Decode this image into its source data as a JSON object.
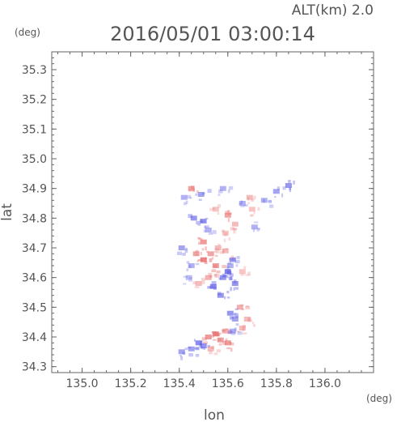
{
  "header": {
    "alt_label": "ALT(km) 2.0",
    "datetime": "2016/05/01 03:00:14"
  },
  "chart_data": {
    "type": "heatmap",
    "title": "2016/05/01 03:00:14",
    "xlabel": "lon",
    "ylabel": "lat",
    "x_unit": "(deg)",
    "y_unit": "(deg)",
    "xlim": [
      134.875,
      136.2
    ],
    "ylim": [
      34.28,
      35.36
    ],
    "xticks": [
      135.0,
      135.2,
      135.4,
      135.6,
      135.8,
      136.0
    ],
    "xtick_labels": [
      "135.0",
      "135.2",
      "135.4",
      "135.6",
      "135.8",
      "136.0"
    ],
    "yticks": [
      34.3,
      34.4,
      34.5,
      34.6,
      34.7,
      34.8,
      34.9,
      35.0,
      35.1,
      35.2,
      35.3
    ],
    "ytick_labels": [
      "34.3",
      "34.4",
      "34.5",
      "34.6",
      "34.7",
      "34.8",
      "34.9",
      "35.0",
      "35.1",
      "35.2",
      "35.3"
    ],
    "grid": false,
    "colors": {
      "positive": "#e8706f",
      "negative": "#5a5ae6"
    },
    "cells": [
      {
        "lon": 135.5,
        "lat": 34.66,
        "v": 0.8
      },
      {
        "lon": 135.55,
        "lat": 34.64,
        "v": 0.6
      },
      {
        "lon": 135.47,
        "lat": 34.68,
        "v": 0.5
      },
      {
        "lon": 135.6,
        "lat": 34.62,
        "v": -0.7
      },
      {
        "lon": 135.58,
        "lat": 34.6,
        "v": -0.5
      },
      {
        "lon": 135.52,
        "lat": 34.6,
        "v": 0.4
      },
      {
        "lon": 135.62,
        "lat": 34.66,
        "v": -0.4
      },
      {
        "lon": 135.45,
        "lat": 34.64,
        "v": -0.3
      },
      {
        "lon": 135.56,
        "lat": 34.7,
        "v": 0.3
      },
      {
        "lon": 135.5,
        "lat": 34.72,
        "v": 0.6
      },
      {
        "lon": 135.54,
        "lat": 34.57,
        "v": -0.6
      },
      {
        "lon": 135.48,
        "lat": 34.58,
        "v": 0.3
      },
      {
        "lon": 135.63,
        "lat": 34.58,
        "v": -0.5
      },
      {
        "lon": 135.41,
        "lat": 34.7,
        "v": -0.4
      },
      {
        "lon": 135.59,
        "lat": 34.69,
        "v": 0.3
      },
      {
        "lon": 135.66,
        "lat": 34.62,
        "v": 0.2
      },
      {
        "lon": 135.44,
        "lat": 34.6,
        "v": -0.2
      },
      {
        "lon": 135.57,
        "lat": 34.54,
        "v": -0.5
      },
      {
        "lon": 135.61,
        "lat": 34.64,
        "v": -0.3
      },
      {
        "lon": 135.53,
        "lat": 34.68,
        "v": 0.5
      },
      {
        "lon": 135.61,
        "lat": 34.48,
        "v": -0.5
      },
      {
        "lon": 135.65,
        "lat": 34.5,
        "v": 0.4
      },
      {
        "lon": 135.68,
        "lat": 34.46,
        "v": 0.3
      },
      {
        "lon": 135.63,
        "lat": 34.46,
        "v": -0.4
      },
      {
        "lon": 135.59,
        "lat": 34.42,
        "v": 0.4
      },
      {
        "lon": 135.55,
        "lat": 34.41,
        "v": 0.8
      },
      {
        "lon": 135.52,
        "lat": 34.4,
        "v": 0.6
      },
      {
        "lon": 135.48,
        "lat": 34.38,
        "v": -0.6
      },
      {
        "lon": 135.5,
        "lat": 34.37,
        "v": -0.5
      },
      {
        "lon": 135.57,
        "lat": 34.39,
        "v": 0.5
      },
      {
        "lon": 135.45,
        "lat": 34.36,
        "v": -0.4
      },
      {
        "lon": 135.62,
        "lat": 34.42,
        "v": -0.3
      },
      {
        "lon": 135.66,
        "lat": 34.43,
        "v": 0.3
      },
      {
        "lon": 135.41,
        "lat": 34.35,
        "v": -0.4
      },
      {
        "lon": 135.6,
        "lat": 34.38,
        "v": 0.6
      },
      {
        "lon": 135.53,
        "lat": 34.36,
        "v": 0.3
      },
      {
        "lon": 135.46,
        "lat": 34.8,
        "v": -0.5
      },
      {
        "lon": 135.5,
        "lat": 34.79,
        "v": -0.4
      },
      {
        "lon": 135.55,
        "lat": 34.83,
        "v": 0.2
      },
      {
        "lon": 135.6,
        "lat": 34.81,
        "v": 0.5
      },
      {
        "lon": 135.63,
        "lat": 34.78,
        "v": 0.3
      },
      {
        "lon": 135.66,
        "lat": 34.85,
        "v": -0.3
      },
      {
        "lon": 135.49,
        "lat": 34.88,
        "v": -0.4
      },
      {
        "lon": 135.45,
        "lat": 34.9,
        "v": 0.5
      },
      {
        "lon": 135.42,
        "lat": 34.87,
        "v": -0.3
      },
      {
        "lon": 135.58,
        "lat": 34.9,
        "v": -0.3
      },
      {
        "lon": 135.69,
        "lat": 34.87,
        "v": 0.3
      },
      {
        "lon": 135.75,
        "lat": 34.86,
        "v": -0.3
      },
      {
        "lon": 135.8,
        "lat": 34.89,
        "v": -0.4
      },
      {
        "lon": 135.85,
        "lat": 34.91,
        "v": -0.5
      },
      {
        "lon": 135.71,
        "lat": 34.77,
        "v": -0.3
      },
      {
        "lon": 135.59,
        "lat": 34.75,
        "v": 0.2
      },
      {
        "lon": 135.52,
        "lat": 34.76,
        "v": -0.3
      },
      {
        "lon": 135.7,
        "lat": 34.83,
        "v": 0.2
      }
    ]
  }
}
